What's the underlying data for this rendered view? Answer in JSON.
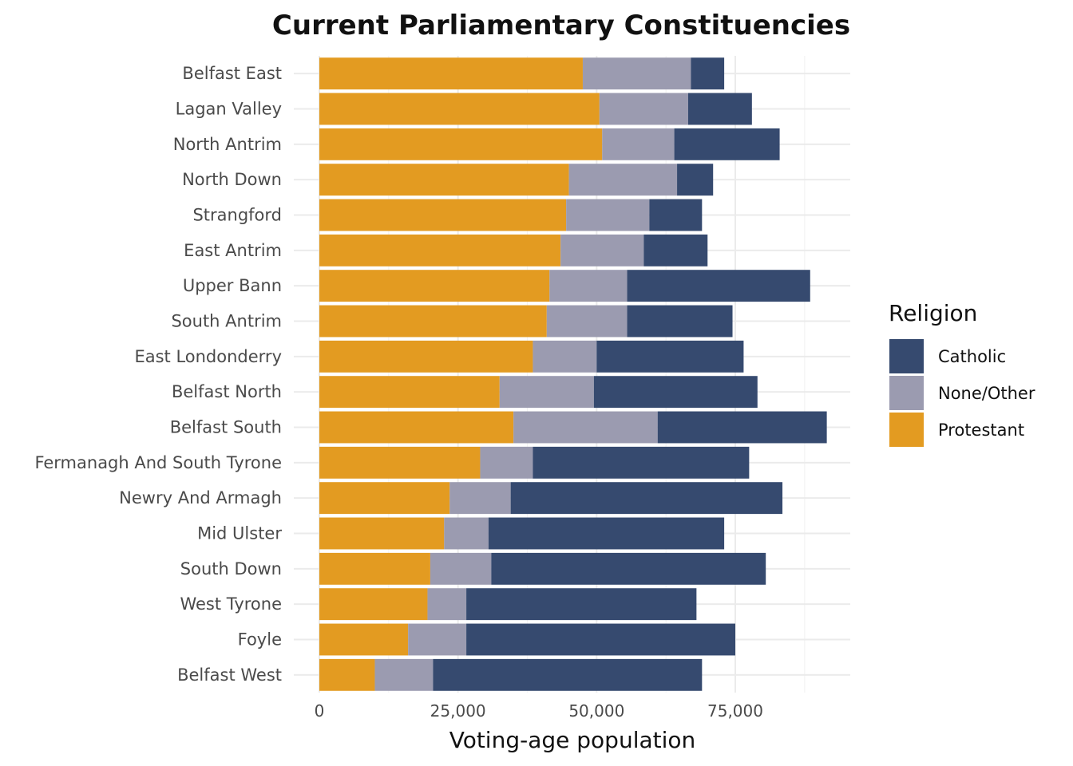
{
  "chart_data": {
    "type": "bar",
    "orientation": "horizontal",
    "stacked": true,
    "title": "Current Parliamentary Constituencies",
    "xlabel": "Voting-age population",
    "ylabel": "",
    "xlim": [
      0,
      95000
    ],
    "xticks": [
      0,
      25000,
      50000,
      75000
    ],
    "xtick_labels": [
      "0",
      "25,000",
      "50,000",
      "75,000"
    ],
    "grid": true,
    "legend": {
      "title": "Religion",
      "position": "right"
    },
    "categories": [
      "Belfast East",
      "Lagan Valley",
      "North Antrim",
      "North Down",
      "Strangford",
      "East Antrim",
      "Upper Bann",
      "South Antrim",
      "East Londonderry",
      "Belfast North",
      "Belfast South",
      "Fermanagh And South Tyrone",
      "Newry And Armagh",
      "Mid Ulster",
      "South Down",
      "West Tyrone",
      "Foyle",
      "Belfast West"
    ],
    "series": [
      {
        "name": "Protestant",
        "color": "#E39B21",
        "values": [
          47500,
          50500,
          51000,
          45000,
          44500,
          43500,
          41500,
          41000,
          38500,
          32500,
          35000,
          29000,
          23500,
          22500,
          20000,
          19500,
          16000,
          10000
        ]
      },
      {
        "name": "None/Other",
        "color": "#9B9BB0",
        "values": [
          19500,
          16000,
          13000,
          19500,
          15000,
          15000,
          14000,
          14500,
          11500,
          17000,
          26000,
          9500,
          11000,
          8000,
          11000,
          7000,
          10500,
          10500
        ]
      },
      {
        "name": "Catholic",
        "color": "#364A6F",
        "values": [
          6000,
          11500,
          19000,
          6500,
          9500,
          11500,
          33000,
          19000,
          26500,
          29500,
          30500,
          39000,
          49000,
          42500,
          49500,
          41500,
          48500,
          48500
        ]
      }
    ],
    "legend_order": [
      "Catholic",
      "None/Other",
      "Protestant"
    ]
  }
}
